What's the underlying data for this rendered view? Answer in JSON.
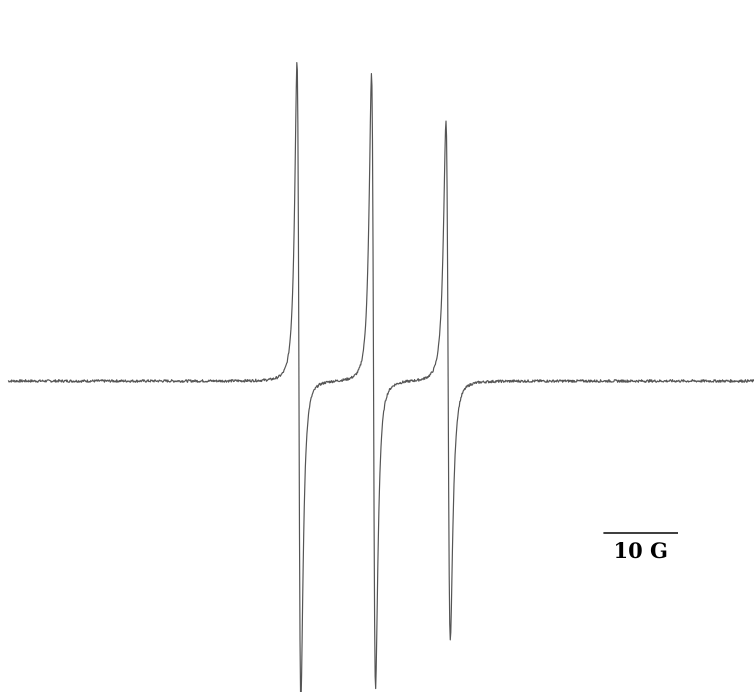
{
  "chart_data": {
    "type": "line",
    "title": "",
    "xlabel": "",
    "ylabel": "",
    "axes_visible": false,
    "grid": false,
    "legend": "none",
    "x_unit": "G",
    "scale_bar": {
      "length": 10,
      "label": "10 G"
    },
    "series": [
      {
        "line_color": "#555555",
        "lines": [
          {
            "center": 20.0,
            "amplitude": 1.0,
            "linewidth": 0.45
          },
          {
            "center": 30.0,
            "amplitude": 0.96,
            "linewidth": 0.47
          },
          {
            "center": 40.0,
            "amplitude": 0.81,
            "linewidth": 0.5
          }
        ],
        "x_range": [
          -19.0,
          81.0
        ],
        "baseline": 0,
        "noise_amplitude": 0.004
      }
    ]
  }
}
